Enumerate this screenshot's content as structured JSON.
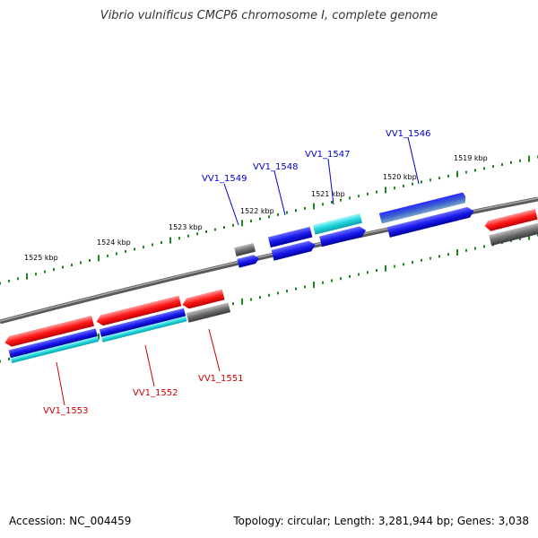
{
  "title": "Vibrio vulnificus CMCP6 chromosome I, complete genome",
  "footer": {
    "accession": "Accession: NC_004459",
    "stats": "Topology: circular; Length: 3,281,944 bp; Genes: 3,038"
  },
  "colors": {
    "backbone": "#808080",
    "tick": "#1a8a1a",
    "label_plus": "#0000cc",
    "label_minus": "#cc0000",
    "red": "#ff1a1a",
    "blue": "#1a1aee",
    "cyan": "#22d4dd",
    "gray": "#707070"
  },
  "kbp_labels": [
    "1525 kbp",
    "1524 kbp",
    "1523 kbp",
    "1522 kbp",
    "1521 kbp",
    "1520 kbp",
    "1519 kbp"
  ],
  "gene_labels_top": [
    "VV1_1549",
    "VV1_1548",
    "VV1_1547",
    "VV1_1546"
  ],
  "gene_labels_bottom": [
    "VV1_1553",
    "VV1_1552",
    "VV1_1551"
  ]
}
